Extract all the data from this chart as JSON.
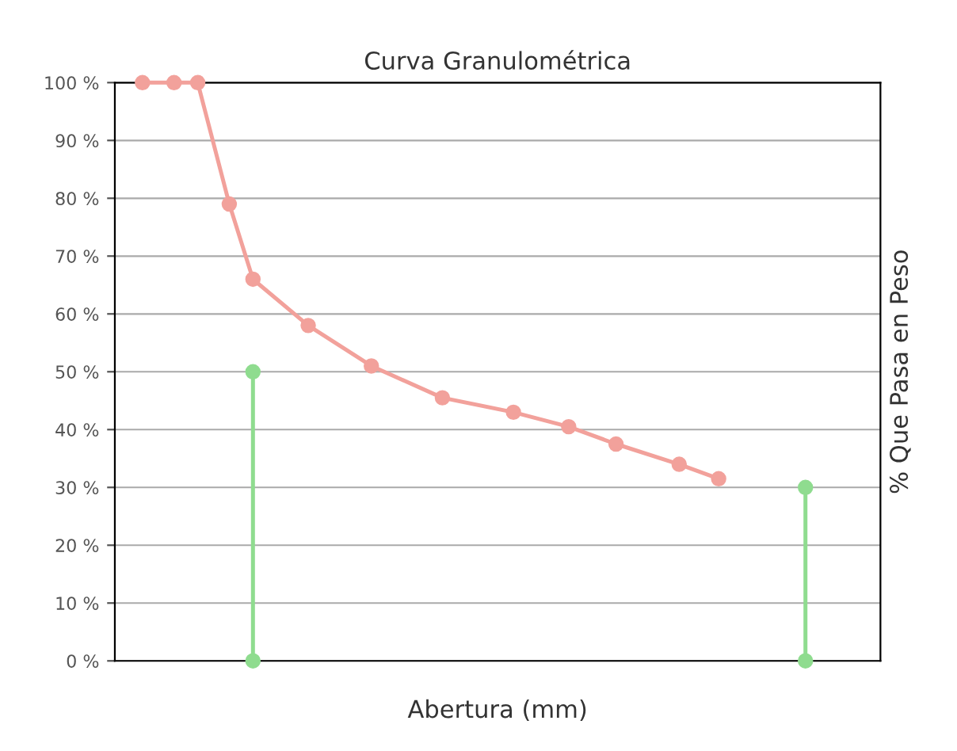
{
  "chart_data": {
    "type": "line",
    "title": "Curva Granulométrica",
    "xlabel": "Abertura (mm)",
    "ylabel": "% Que Pasa en Peso",
    "marker": "circle",
    "grid": "y",
    "ylim": [
      0,
      100
    ],
    "yticks": [
      {
        "value": 0,
        "label": "0 %"
      },
      {
        "value": 10,
        "label": "10 %"
      },
      {
        "value": 20,
        "label": "20 %"
      },
      {
        "value": 30,
        "label": "30 %"
      },
      {
        "value": 40,
        "label": "40 %"
      },
      {
        "value": 50,
        "label": "50 %"
      },
      {
        "value": 60,
        "label": "60 %"
      },
      {
        "value": 70,
        "label": "70 %"
      },
      {
        "value": 80,
        "label": "80 %"
      },
      {
        "value": 90,
        "label": "90 %"
      },
      {
        "value": 100,
        "label": "100 %"
      }
    ],
    "categories": [
      null,
      null,
      null,
      null,
      null,
      null,
      null,
      null,
      null,
      null,
      null,
      null,
      null,
      null,
      null,
      null,
      null,
      null,
      null,
      null,
      null,
      null,
      null,
      null,
      null,
      null,
      null,
      null,
      null,
      null,
      null,
      null,
      null,
      null,
      null,
      null,
      null,
      null,
      null,
      null,
      null,
      null,
      null,
      null,
      null,
      null,
      null,
      null,
      null,
      null,
      null,
      null,
      null,
      null,
      null,
      null,
      null,
      null,
      null,
      null,
      null,
      null,
      null,
      null,
      null,
      null,
      null,
      null,
      null,
      null,
      null,
      null,
      null,
      null,
      null,
      null,
      null,
      null,
      null,
      null,
      null,
      null,
      null,
      null,
      null,
      null,
      null,
      null,
      null,
      null,
      null,
      null,
      null,
      null,
      null,
      null,
      null
    ],
    "series": [
      {
        "color": "#f2a19b",
        "values": [
          null,
          null,
          null,
          100,
          null,
          null,
          null,
          100,
          null,
          null,
          100,
          null,
          null,
          null,
          79,
          null,
          null,
          66,
          null,
          null,
          null,
          null,
          null,
          null,
          58,
          null,
          null,
          null,
          null,
          null,
          null,
          null,
          51,
          null,
          null,
          null,
          null,
          null,
          null,
          null,
          null,
          45.5,
          null,
          null,
          null,
          null,
          null,
          null,
          null,
          null,
          43,
          null,
          null,
          null,
          null,
          null,
          null,
          40.5,
          null,
          null,
          null,
          null,
          null,
          37.5,
          null,
          null,
          null,
          null,
          null,
          null,
          null,
          34,
          null,
          null,
          null,
          null,
          31.5,
          null,
          null,
          null,
          null,
          null,
          null,
          null,
          null,
          null,
          null,
          null,
          null,
          null,
          null,
          null,
          null,
          null,
          null,
          null,
          null
        ]
      },
      {
        "type": "lollipop",
        "color": "#8fdc8f",
        "values": [
          null,
          null,
          null,
          null,
          null,
          null,
          null,
          null,
          null,
          null,
          null,
          null,
          null,
          null,
          null,
          null,
          null,
          50,
          null,
          null,
          null,
          null,
          null,
          null,
          null,
          null,
          null,
          null,
          null,
          null,
          null,
          null,
          null,
          null,
          null,
          null,
          null,
          null,
          null,
          null,
          null,
          null,
          null,
          null,
          null,
          null,
          null,
          null,
          null,
          null,
          null,
          null,
          null,
          null,
          null,
          null,
          null,
          null,
          null,
          null,
          null,
          null,
          null,
          null,
          null,
          null,
          null,
          null,
          null,
          null,
          null,
          null,
          null,
          null,
          null,
          null,
          null,
          null,
          null,
          null,
          null,
          null,
          null,
          null,
          null,
          null,
          null,
          30,
          null,
          null,
          null,
          null,
          null,
          null,
          null,
          null,
          null
        ]
      },
      {
        "type": "scatter",
        "color": "#8fdc8f",
        "values": [
          null,
          null,
          null,
          null,
          null,
          null,
          null,
          null,
          null,
          null,
          null,
          null,
          null,
          null,
          null,
          null,
          null,
          0,
          null,
          null,
          null,
          null,
          null,
          null,
          null,
          null,
          null,
          null,
          null,
          null,
          null,
          null,
          null,
          null,
          null,
          null,
          null,
          null,
          null,
          null,
          null,
          null,
          null,
          null,
          null,
          null,
          null,
          null,
          null,
          null,
          null,
          null,
          null,
          null,
          null,
          null,
          null,
          null,
          null,
          null,
          null,
          null,
          null,
          null,
          null,
          null,
          null,
          null,
          null,
          null,
          null,
          null,
          null,
          null,
          null,
          null,
          null,
          null,
          null,
          null,
          null,
          null,
          null,
          null,
          null,
          null,
          null,
          0,
          null,
          null,
          null,
          null,
          null,
          null,
          null,
          null,
          null
        ]
      }
    ]
  }
}
